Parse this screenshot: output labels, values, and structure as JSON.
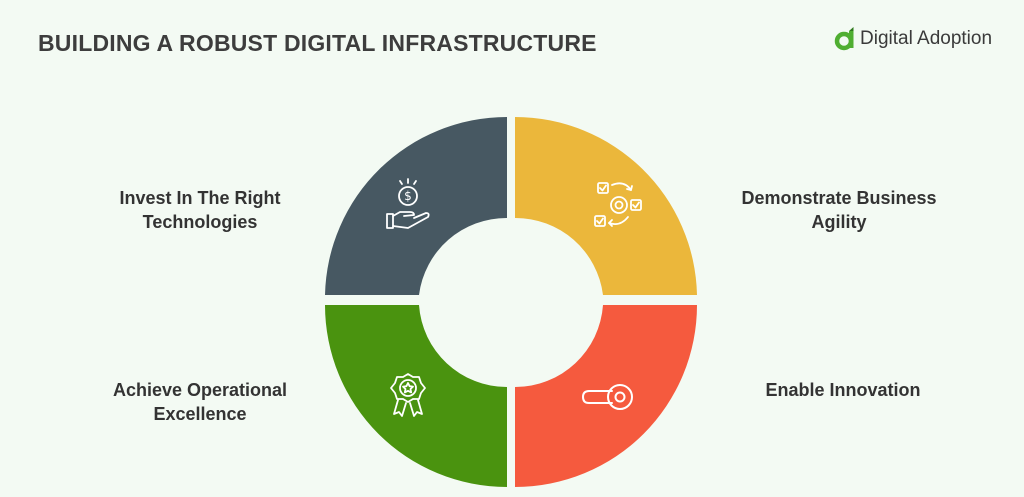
{
  "header": {
    "title": "BUILDING A ROBUST DIGITAL INFRASTRUCTURE",
    "brand": "Digital Adoption"
  },
  "segments": [
    {
      "lines": [
        "Invest In The Right",
        "Technologies"
      ],
      "color": "#475862",
      "icon": "money-hand-icon"
    },
    {
      "lines": [
        "Demonstrate Business",
        "Agility"
      ],
      "color": "#ebb73b",
      "icon": "agile-cycle-icon"
    },
    {
      "lines": [
        "Achieve Operational",
        "Excellence"
      ],
      "color": "#4a930f",
      "icon": "award-badge-icon"
    },
    {
      "lines": [
        "Enable Innovation"
      ],
      "color": "#f55a3e",
      "icon": "toggle-switch-icon"
    }
  ],
  "colors": {
    "background": "#f3faf3",
    "logo_green": "#4fae31",
    "icon_stroke": "#ffffff"
  }
}
